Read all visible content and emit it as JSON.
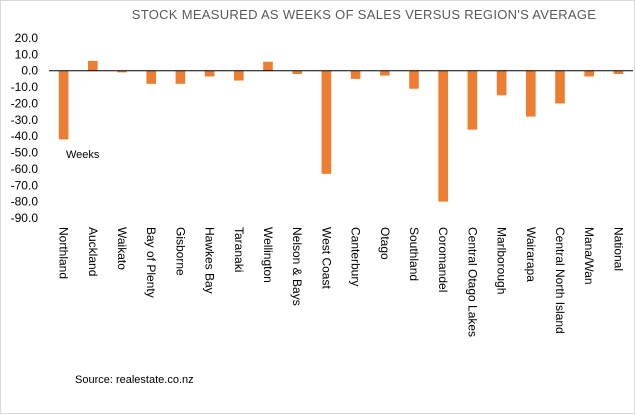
{
  "chart_data": {
    "type": "bar",
    "title": "STOCK MEASURED AS WEEKS OF SALES VERSUS REGION'S AVERAGE",
    "categories": [
      "Northland",
      "Auckland",
      "Waikato",
      "Bay of Plenty",
      "Gisborne",
      "Hawkes Bay",
      "Taranaki",
      "Wellington",
      "Nelson & Bays",
      "West Coast",
      "Canterbury",
      "Otago",
      "Southland",
      "Coromandel",
      "Central Otago Lakes",
      "Marlborough",
      "Wairarapa",
      "Central North Island",
      "Mana/Wan",
      "National"
    ],
    "series": [
      {
        "values": [
          -42,
          6,
          -1,
          -8,
          -8,
          -3.5,
          -6,
          5.5,
          -2,
          -63,
          -5,
          -3,
          -11,
          -80,
          -36,
          -15,
          -28,
          -20,
          -3.5,
          -2
        ]
      }
    ],
    "ylim": [
      -90,
      20
    ],
    "yticks": [
      "20.0",
      "10.0",
      "0.0",
      "-10.0",
      "-20.0",
      "-30.0",
      "-40.0",
      "-50.0",
      "-60.0",
      "-70.0",
      "-80.0",
      "-90.0"
    ],
    "annotation": "Weeks",
    "source": "Source: realestate.co.nz",
    "grid": false,
    "legend": "none",
    "bar_color": "#ED7D31"
  }
}
